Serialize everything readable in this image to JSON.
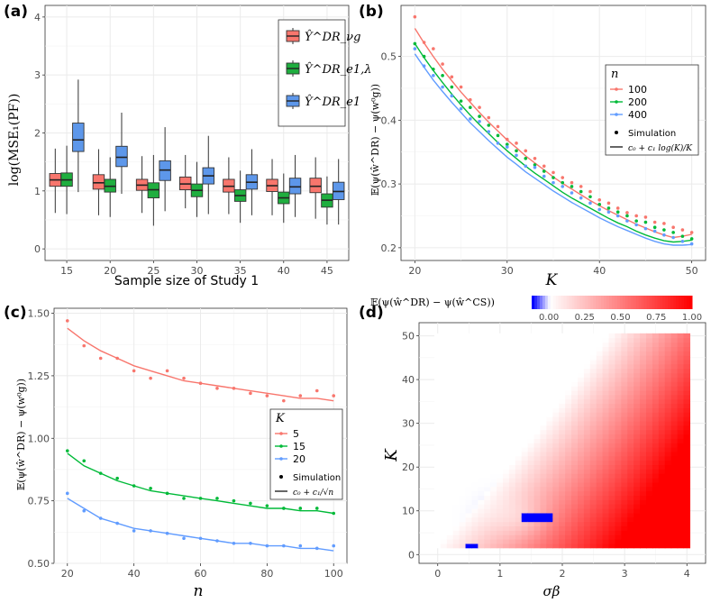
{
  "panels": {
    "a": {
      "tag": "(a)",
      "xlabel": "Sample size of Study 1",
      "ylabel": "log(MSE₁(PF))",
      "legend": [
        "Ŷ^DR_νg",
        "Ŷ^DR_e1,λ",
        "Ŷ^DR_e1"
      ]
    },
    "b": {
      "tag": "(b)",
      "xlabel": "K",
      "ylabel": "𝔼(ψ(ŵ^DR) − ψ(w⁰g))",
      "legend_title": "n",
      "legend": [
        "100",
        "200",
        "400"
      ],
      "legend_sim": "Simulation",
      "legend_fit": "c₀ + c₁ log(K)/K"
    },
    "c": {
      "tag": "(c)",
      "xlabel": "n",
      "ylabel": "𝔼(ψ(ŵ^DR) − ψ(w⁰g))",
      "legend_title": "K",
      "legend": [
        "5",
        "15",
        "20"
      ],
      "legend_sim": "Simulation",
      "legend_fit": "c₀ + c₁/√n"
    },
    "d": {
      "tag": "(d)",
      "xlabel": "σβ",
      "ylabel": "K",
      "colorbar_title": "𝔼(ψ(ŵ^DR) − ψ(ŵ^CS))",
      "colorbar_ticks": [
        "0.00",
        "0.25",
        "0.50",
        "0.75",
        "1.00"
      ]
    }
  },
  "colors": {
    "red": "#f8766d",
    "green": "#00ba38",
    "blue": "#619cff",
    "box_red": "#f8766d",
    "box_green": "#1fae3f",
    "box_blue": "#5d97ea",
    "heat_low": "#ffffff",
    "heat_high": "#ff0000",
    "heat_neg": "#0000ff"
  },
  "chart_data": [
    {
      "id": "a",
      "type": "box",
      "categories": [
        "15",
        "20",
        "25",
        "30",
        "35",
        "40",
        "45"
      ],
      "xlabel": "Sample size of Study 1",
      "ylabel": "log(MSE₁(PF))",
      "ylim": [
        -0.2,
        4.2
      ],
      "yticks": [
        0,
        1,
        2,
        3,
        4
      ],
      "grid": true,
      "legend_position": "top-right",
      "series": [
        {
          "name": "Ŷ^DR_νg",
          "boxes": [
            {
              "min": 0.62,
              "q1": 1.08,
              "med": 1.19,
              "q3": 1.3,
              "max": 1.73
            },
            {
              "min": 0.58,
              "q1": 1.03,
              "med": 1.14,
              "q3": 1.28,
              "max": 1.72
            },
            {
              "min": 0.62,
              "q1": 1.01,
              "med": 1.1,
              "q3": 1.2,
              "max": 1.6
            },
            {
              "min": 0.7,
              "q1": 1.02,
              "med": 1.12,
              "q3": 1.24,
              "max": 1.62
            },
            {
              "min": 0.6,
              "q1": 0.98,
              "med": 1.08,
              "q3": 1.2,
              "max": 1.58
            },
            {
              "min": 0.58,
              "q1": 0.99,
              "med": 1.09,
              "q3": 1.2,
              "max": 1.55
            },
            {
              "min": 0.52,
              "q1": 0.97,
              "med": 1.08,
              "q3": 1.22,
              "max": 1.58
            }
          ]
        },
        {
          "name": "Ŷ^DR_e1,λ",
          "boxes": [
            {
              "min": 0.6,
              "q1": 1.08,
              "med": 1.19,
              "q3": 1.31,
              "max": 1.78
            },
            {
              "min": 0.55,
              "q1": 0.98,
              "med": 1.08,
              "q3": 1.2,
              "max": 1.58
            },
            {
              "min": 0.4,
              "q1": 0.88,
              "med": 1.02,
              "q3": 1.14,
              "max": 1.62
            },
            {
              "min": 0.55,
              "q1": 0.9,
              "med": 1.01,
              "q3": 1.12,
              "max": 1.5
            },
            {
              "min": 0.45,
              "q1": 0.82,
              "med": 0.92,
              "q3": 1.02,
              "max": 1.35
            },
            {
              "min": 0.45,
              "q1": 0.78,
              "med": 0.88,
              "q3": 0.98,
              "max": 1.3
            },
            {
              "min": 0.42,
              "q1": 0.72,
              "med": 0.84,
              "q3": 0.95,
              "max": 1.25
            }
          ]
        },
        {
          "name": "Ŷ^DR_e1",
          "boxes": [
            {
              "min": 0.98,
              "q1": 1.68,
              "med": 1.88,
              "q3": 2.17,
              "max": 2.92
            },
            {
              "min": 0.95,
              "q1": 1.42,
              "med": 1.58,
              "q3": 1.77,
              "max": 2.35
            },
            {
              "min": 0.65,
              "q1": 1.18,
              "med": 1.36,
              "q3": 1.52,
              "max": 2.1
            },
            {
              "min": 0.6,
              "q1": 1.12,
              "med": 1.26,
              "q3": 1.4,
              "max": 1.95
            },
            {
              "min": 0.58,
              "q1": 1.03,
              "med": 1.15,
              "q3": 1.28,
              "max": 1.72
            },
            {
              "min": 0.55,
              "q1": 0.95,
              "med": 1.07,
              "q3": 1.22,
              "max": 1.62
            },
            {
              "min": 0.42,
              "q1": 0.85,
              "med": 0.99,
              "q3": 1.15,
              "max": 1.55
            }
          ]
        }
      ]
    },
    {
      "id": "b",
      "type": "scatter+line",
      "xlabel": "K",
      "ylabel": "𝔼(ψ(ŵ^DR) − ψ(w⁰g))",
      "xlim": [
        18.5,
        51.5
      ],
      "ylim": [
        0.18,
        0.58
      ],
      "xticks": [
        20,
        30,
        40,
        50
      ],
      "yticks": [
        0.2,
        0.3,
        0.4,
        0.5
      ],
      "grid": true,
      "legend_title": "n",
      "legend_position": "right",
      "x": [
        20,
        21,
        22,
        23,
        24,
        25,
        26,
        27,
        28,
        29,
        30,
        31,
        32,
        33,
        34,
        35,
        36,
        37,
        38,
        39,
        40,
        41,
        42,
        43,
        44,
        45,
        46,
        47,
        48,
        49,
        50
      ],
      "series": [
        {
          "name": "100",
          "points": [
            0.562,
            0.522,
            0.512,
            0.488,
            0.468,
            0.452,
            0.432,
            0.42,
            0.404,
            0.39,
            0.37,
            0.364,
            0.352,
            0.34,
            0.328,
            0.318,
            0.31,
            0.302,
            0.296,
            0.288,
            0.275,
            0.27,
            0.262,
            0.255,
            0.25,
            0.248,
            0.24,
            0.238,
            0.232,
            0.228,
            0.224
          ],
          "fit": [
            0.544,
            0.521,
            0.5,
            0.48,
            0.462,
            0.444,
            0.428,
            0.412,
            0.397,
            0.383,
            0.369,
            0.357,
            0.344,
            0.333,
            0.322,
            0.311,
            0.301,
            0.292,
            0.283,
            0.274,
            0.266,
            0.258,
            0.251,
            0.244,
            0.237,
            0.231,
            0.225,
            0.22,
            0.216,
            0.218,
            0.221
          ]
        },
        {
          "name": "200",
          "points": [
            0.52,
            0.5,
            0.48,
            0.47,
            0.452,
            0.43,
            0.42,
            0.406,
            0.392,
            0.376,
            0.362,
            0.352,
            0.34,
            0.33,
            0.32,
            0.31,
            0.302,
            0.296,
            0.288,
            0.28,
            0.268,
            0.262,
            0.256,
            0.25,
            0.242,
            0.24,
            0.232,
            0.228,
            0.224,
            0.218,
            0.214
          ],
          "fit": [
            0.52,
            0.498,
            0.478,
            0.459,
            0.441,
            0.424,
            0.408,
            0.393,
            0.379,
            0.365,
            0.352,
            0.34,
            0.328,
            0.317,
            0.307,
            0.297,
            0.287,
            0.278,
            0.27,
            0.262,
            0.254,
            0.246,
            0.239,
            0.233,
            0.226,
            0.22,
            0.215,
            0.211,
            0.209,
            0.21,
            0.212
          ]
        },
        {
          "name": "400",
          "points": [
            0.512,
            0.485,
            0.47,
            0.452,
            0.438,
            0.418,
            0.402,
            0.398,
            0.382,
            0.364,
            0.358,
            0.345,
            0.328,
            0.326,
            0.312,
            0.302,
            0.296,
            0.286,
            0.278,
            0.27,
            0.26,
            0.256,
            0.25,
            0.242,
            0.236,
            0.23,
            0.226,
            0.22,
            0.216,
            0.21,
            0.206
          ],
          "fit": [
            0.504,
            0.483,
            0.463,
            0.445,
            0.428,
            0.412,
            0.396,
            0.382,
            0.368,
            0.355,
            0.342,
            0.331,
            0.319,
            0.309,
            0.299,
            0.289,
            0.28,
            0.271,
            0.263,
            0.255,
            0.247,
            0.24,
            0.233,
            0.227,
            0.221,
            0.215,
            0.21,
            0.206,
            0.204,
            0.204,
            0.205
          ]
        }
      ]
    },
    {
      "id": "c",
      "type": "scatter+line",
      "xlabel": "n",
      "ylabel": "𝔼(ψ(ŵ^DR) − ψ(w⁰g))",
      "xlim": [
        16,
        104
      ],
      "ylim": [
        0.5,
        1.52
      ],
      "xticks": [
        20,
        40,
        60,
        80,
        100
      ],
      "yticks": [
        0.5,
        0.75,
        1.0,
        1.25,
        1.5
      ],
      "ytick_labels": [
        "0.50",
        "0.75",
        "1.00",
        "1.25",
        "1.50"
      ],
      "grid": true,
      "legend_title": "K",
      "legend_position": "right",
      "x": [
        20,
        25,
        30,
        35,
        40,
        45,
        50,
        55,
        60,
        65,
        70,
        75,
        80,
        85,
        90,
        95,
        100
      ],
      "series": [
        {
          "name": "5",
          "points": [
            1.47,
            1.37,
            1.32,
            1.32,
            1.27,
            1.24,
            1.27,
            1.24,
            1.22,
            1.2,
            1.2,
            1.18,
            1.17,
            1.15,
            1.17,
            1.19,
            1.17
          ],
          "fit": [
            1.44,
            1.39,
            1.35,
            1.32,
            1.29,
            1.27,
            1.25,
            1.23,
            1.22,
            1.21,
            1.2,
            1.19,
            1.18,
            1.17,
            1.16,
            1.16,
            1.15
          ]
        },
        {
          "name": "15",
          "points": [
            0.95,
            0.91,
            0.86,
            0.84,
            0.81,
            0.8,
            0.78,
            0.76,
            0.76,
            0.76,
            0.75,
            0.74,
            0.73,
            0.72,
            0.72,
            0.72,
            0.7
          ],
          "fit": [
            0.94,
            0.89,
            0.86,
            0.83,
            0.81,
            0.79,
            0.78,
            0.77,
            0.76,
            0.75,
            0.74,
            0.73,
            0.72,
            0.72,
            0.71,
            0.71,
            0.7
          ]
        },
        {
          "name": "20",
          "points": [
            0.78,
            0.71,
            0.68,
            0.66,
            0.63,
            0.63,
            0.62,
            0.6,
            0.6,
            0.59,
            0.58,
            0.58,
            0.57,
            0.57,
            0.57,
            0.56,
            0.57
          ],
          "fit": [
            0.76,
            0.72,
            0.68,
            0.66,
            0.64,
            0.63,
            0.62,
            0.61,
            0.6,
            0.59,
            0.58,
            0.58,
            0.57,
            0.57,
            0.56,
            0.56,
            0.55
          ]
        }
      ]
    },
    {
      "id": "d",
      "type": "heatmap",
      "xlabel": "σβ",
      "ylabel": "K",
      "xlim": [
        -0.3,
        4.3
      ],
      "ylim": [
        -2,
        53
      ],
      "xticks": [
        0,
        1,
        2,
        3,
        4
      ],
      "yticks": [
        0,
        10,
        20,
        30,
        40,
        50
      ],
      "grid": true,
      "x_range": [
        0,
        4
      ],
      "y_range": [
        2,
        50
      ],
      "x_step": 0.1,
      "y_step": 1,
      "value_range": [
        -0.12,
        1.0
      ],
      "legend_position": "top",
      "description": "values increase from ~0 at upper-left to 1.00 at lower-right (high σβ, low K); small negative region near σβ≈1–1.8, K≈2–13"
    }
  ]
}
